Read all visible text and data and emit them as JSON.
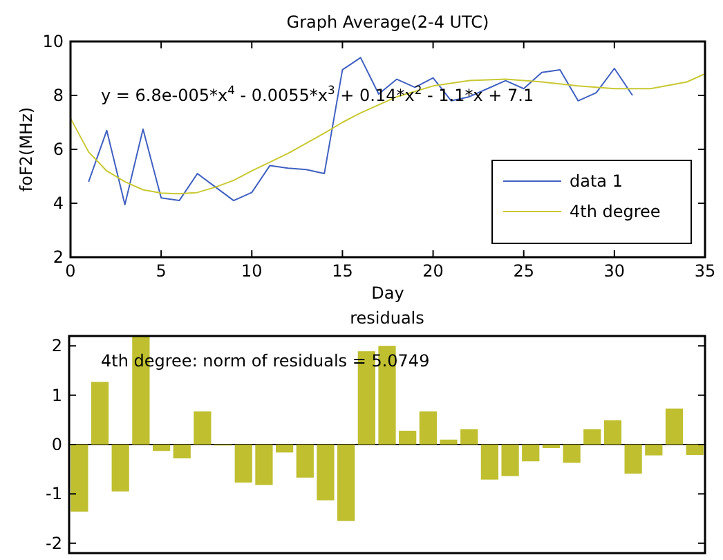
{
  "chart_data": [
    {
      "type": "line",
      "title": "Graph Average(2-4 UTC)",
      "xlabel": "Day",
      "ylabel": "foF2(MHz)",
      "xlim": [
        0,
        35
      ],
      "xticks": [
        0,
        5,
        10,
        15,
        20,
        25,
        30,
        35
      ],
      "ylim": [
        2,
        10
      ],
      "yticks": [
        2,
        4,
        6,
        8,
        10
      ],
      "grid": false,
      "legend": "bottom right",
      "marker": "none",
      "line_style": "solid",
      "annotations": [
        "y = 6.8e-005*x$^{4}$ - 0.0055*x$^{3}$ + 0.14*x$^{2}$ - 1.1*x + 7.1"
      ],
      "series": [
        {
          "name": "data 1",
          "color": "#4060c0",
          "x": [
            1,
            2,
            3,
            4,
            5,
            6,
            7,
            8,
            9,
            10,
            11,
            12,
            13,
            14,
            15,
            16,
            17,
            18,
            19,
            20,
            21,
            22,
            23,
            24,
            25,
            26,
            27,
            28,
            29,
            30,
            31
          ],
          "values": [
            4.8,
            6.7,
            3.95,
            6.75,
            4.2,
            4.1,
            5.1,
            4.6,
            4.1,
            4.4,
            5.4,
            5.3,
            5.25,
            5.1,
            8.95,
            9.4,
            8.05,
            8.6,
            8.3,
            8.65,
            7.8,
            7.95,
            8.25,
            8.55,
            8.25,
            8.85,
            8.95,
            7.8,
            8.1,
            9.0,
            8.0
          ]
        },
        {
          "name": "4th degree",
          "color": "#c8c832",
          "x": [
            0,
            1,
            2,
            3,
            4,
            5,
            6,
            7,
            8,
            9,
            10,
            12,
            14,
            15,
            16,
            18,
            20,
            22,
            24,
            26,
            28,
            30,
            32,
            34,
            35
          ],
          "values": [
            7.15,
            5.9,
            5.2,
            4.8,
            4.5,
            4.38,
            4.35,
            4.4,
            4.6,
            4.85,
            5.2,
            5.85,
            6.6,
            7.0,
            7.35,
            7.95,
            8.35,
            8.55,
            8.6,
            8.5,
            8.35,
            8.25,
            8.25,
            8.5,
            8.8
          ]
        }
      ]
    },
    {
      "type": "bar",
      "title": "residuals",
      "color": "#bfbf30",
      "categories": [
        null,
        null,
        null,
        null,
        null,
        null,
        null,
        null,
        null,
        null,
        null,
        null,
        null,
        null,
        null,
        null,
        null,
        null,
        null,
        null,
        null,
        null,
        null,
        null,
        null,
        null,
        null,
        null,
        null,
        null,
        null
      ],
      "values": [
        -1.36,
        1.27,
        -0.95,
        2.2,
        -0.13,
        -0.28,
        0.67,
        -0.02,
        -0.77,
        -0.82,
        -0.16,
        -0.67,
        -1.13,
        -1.55,
        1.89,
        2.0,
        0.28,
        0.67,
        0.1,
        0.31,
        -0.71,
        -0.64,
        -0.34,
        -0.07,
        -0.37,
        0.31,
        0.49,
        -0.59,
        -0.22,
        0.73,
        -0.21
      ],
      "ylim": [
        -2.2,
        2.2
      ],
      "yticks": [
        -2,
        -1,
        0,
        1,
        2
      ],
      "tick_labels": "y",
      "grid": false,
      "ref_lines": [
        {
          "axis": "y",
          "value": 0,
          "color": "#000000"
        }
      ],
      "annotations": [
        "4th degree: norm of residuals = 5.0749"
      ]
    }
  ]
}
